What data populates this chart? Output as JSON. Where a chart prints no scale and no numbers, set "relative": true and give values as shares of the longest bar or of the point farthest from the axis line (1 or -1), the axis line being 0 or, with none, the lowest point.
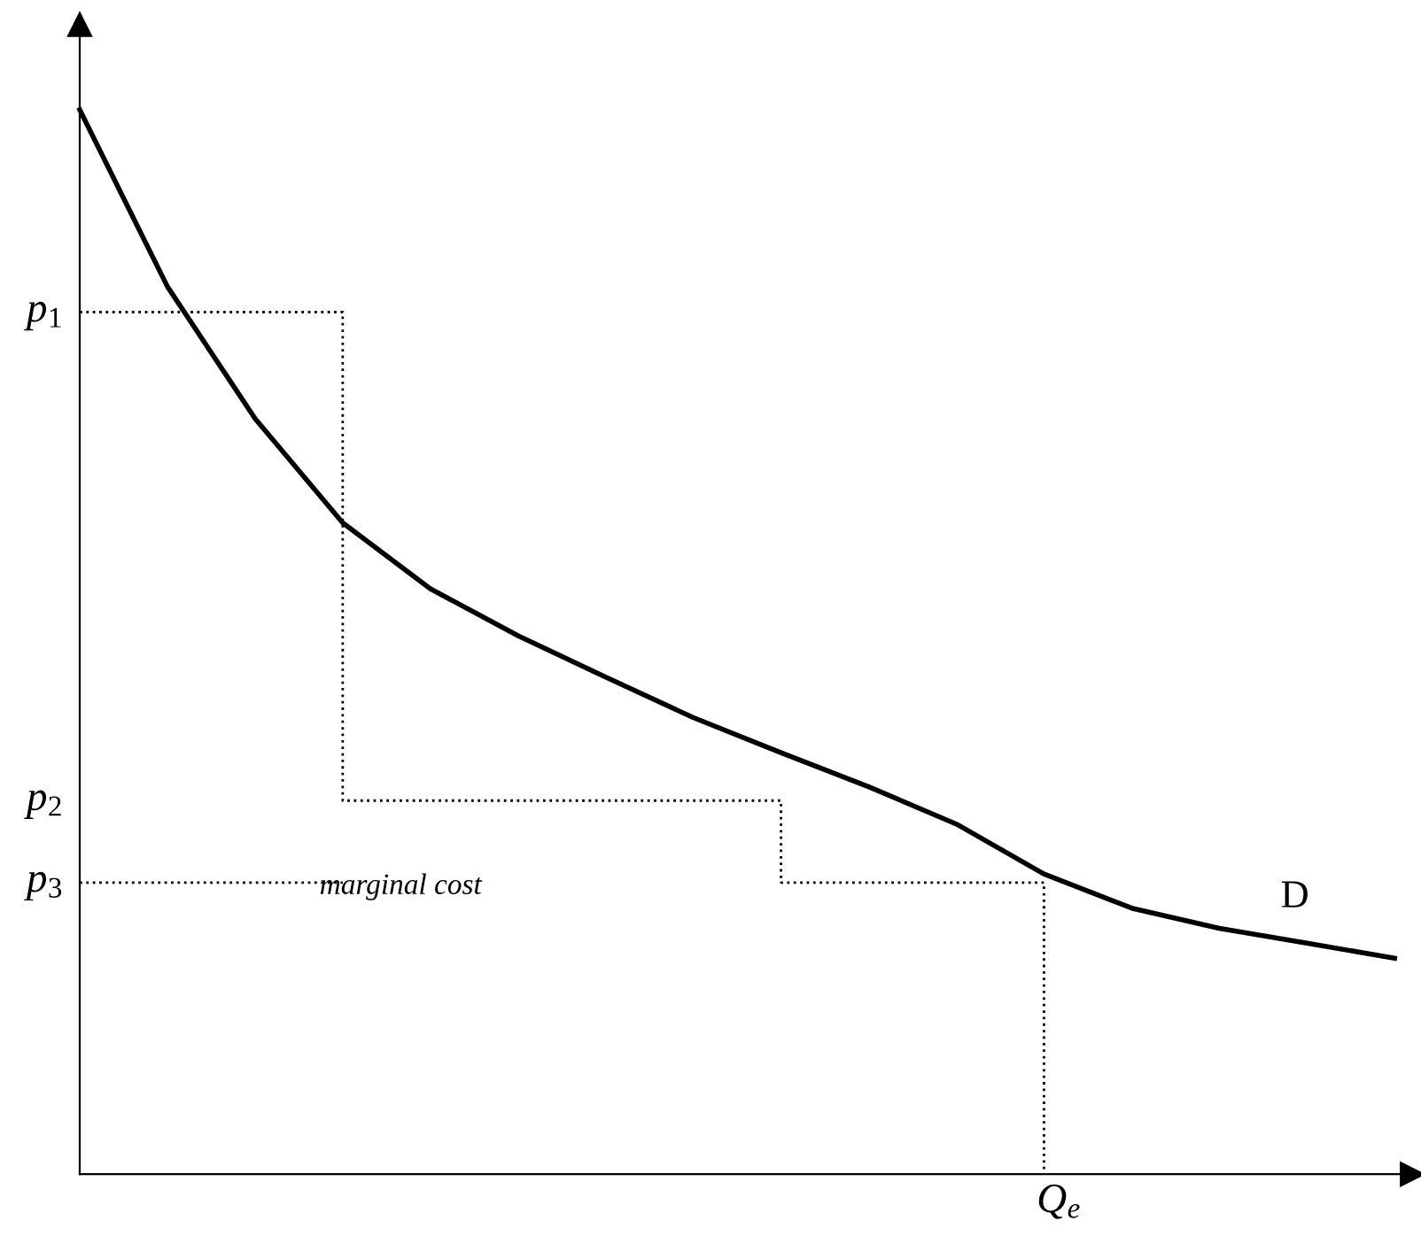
{
  "chart_data": {
    "type": "line",
    "relative": true,
    "categories": [
      null,
      null,
      null,
      null,
      null,
      null,
      null,
      null,
      null,
      null,
      null,
      null,
      null,
      null,
      null,
      null
    ],
    "series": [
      {
        "name": "D",
        "color": "#000000",
        "values": [
          1.0,
          0.834,
          0.71,
          0.612,
          0.55,
          0.506,
          0.467,
          0.429,
          0.396,
          0.364,
          0.329,
          0.282,
          0.25,
          0.231,
          0.217,
          0.203
        ]
      },
      {
        "type": "step",
        "color": "#000000",
        "line_style": "dotted",
        "values": [
          0.81,
          0.81,
          0.81,
          0.351,
          0.351,
          0.351,
          0.351,
          0.351,
          0.274,
          0.274,
          0.274,
          0,
          null,
          null,
          null,
          null
        ]
      },
      {
        "type": "line",
        "color": "#000000",
        "line_style": "dotted",
        "values": [
          0.274,
          0.274,
          0.274,
          0.274,
          null,
          null,
          null,
          null,
          null,
          null,
          null,
          null,
          null,
          null,
          null,
          null
        ]
      }
    ],
    "annotations": [
      "p$_{1}$",
      "p$_{2}$",
      "p$_{3}$",
      "marginal cost",
      "Q$_{e}$"
    ],
    "tick_labels": false
  }
}
